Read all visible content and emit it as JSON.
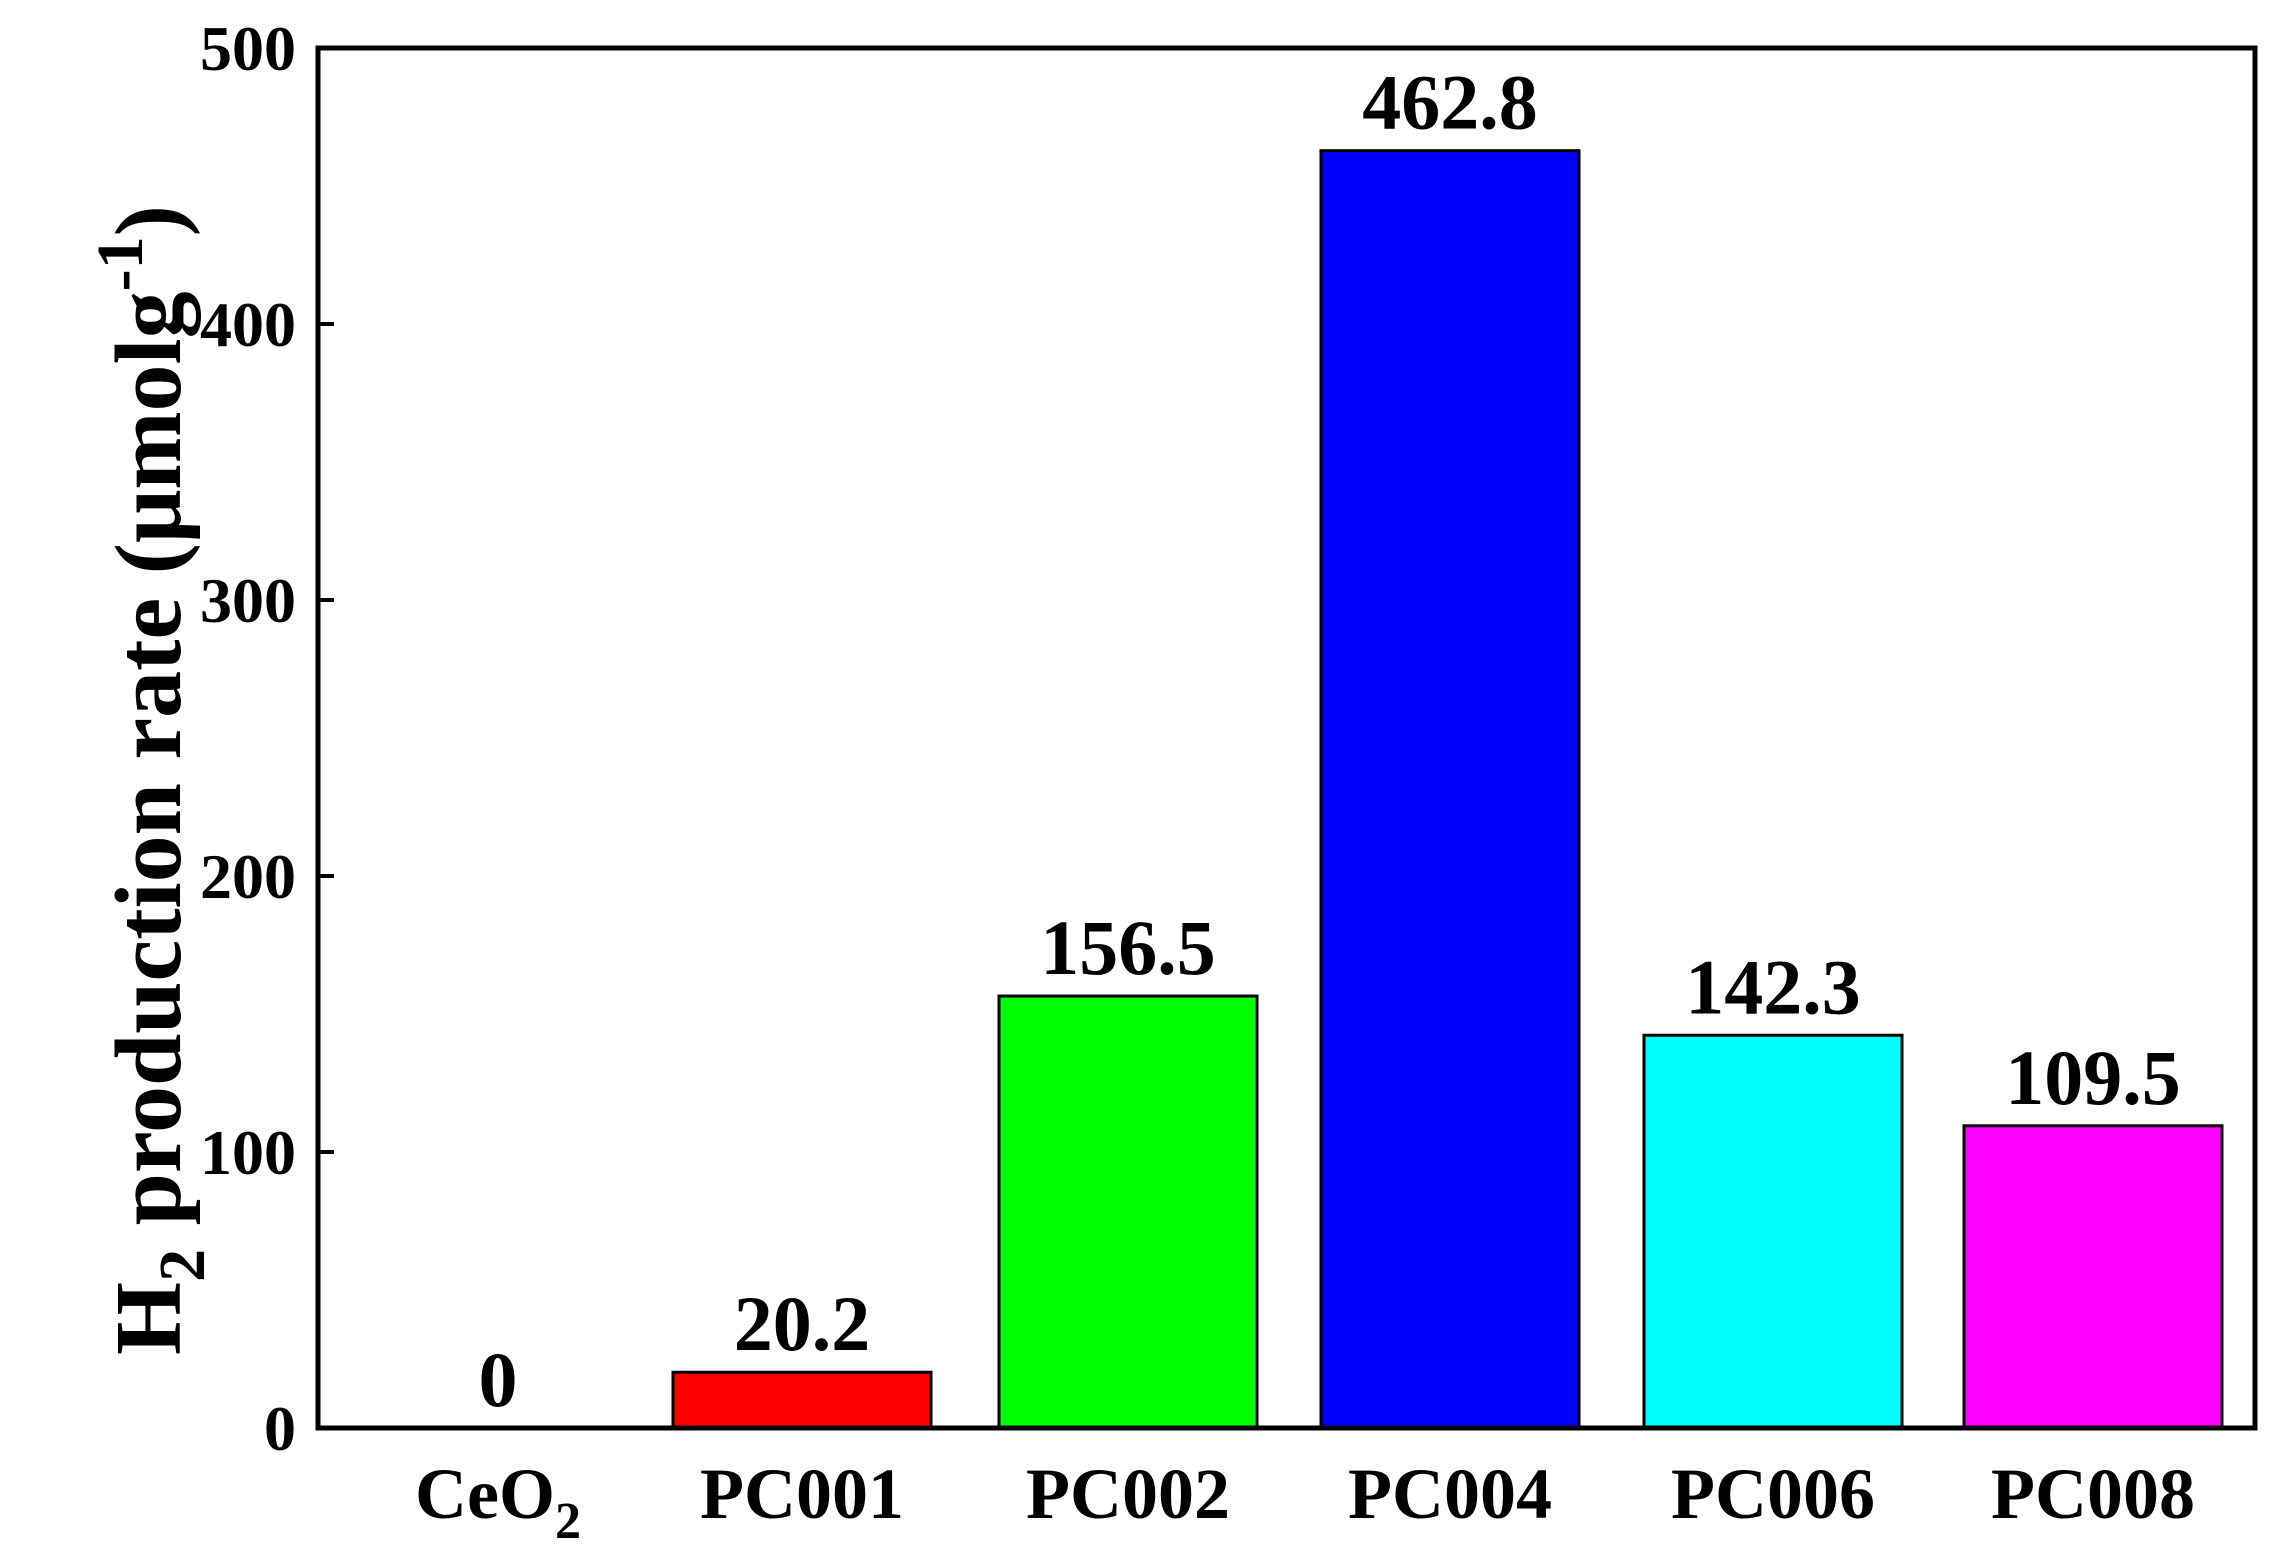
{
  "chart_data": {
    "type": "bar",
    "categories": [
      {
        "base": "CeO",
        "sub": "2"
      },
      {
        "base": "PC001",
        "sub": ""
      },
      {
        "base": "PC002",
        "sub": ""
      },
      {
        "base": "PC004",
        "sub": ""
      },
      {
        "base": "PC006",
        "sub": ""
      },
      {
        "base": "PC008",
        "sub": ""
      }
    ],
    "values": [
      0,
      20.2,
      156.5,
      462.8,
      142.3,
      109.5
    ],
    "data_labels": [
      "0",
      "20.2",
      "156.5",
      "462.8",
      "142.3",
      "109.5"
    ],
    "colors": [
      "#ffffff",
      "#ff0000",
      "#00ff00",
      "#0000ff",
      "#00ffff",
      "#ff00ff"
    ],
    "ylabel": {
      "pre": "H",
      "sub": "2",
      "mid": " production rate (μmolg",
      "sup": "-1",
      "post": ")"
    },
    "ylim": [
      0,
      500
    ],
    "yticks": [
      "0",
      "100",
      "200",
      "300",
      "400",
      "500"
    ],
    "xlabel": "",
    "title": "",
    "grid": false,
    "legend": "none"
  }
}
